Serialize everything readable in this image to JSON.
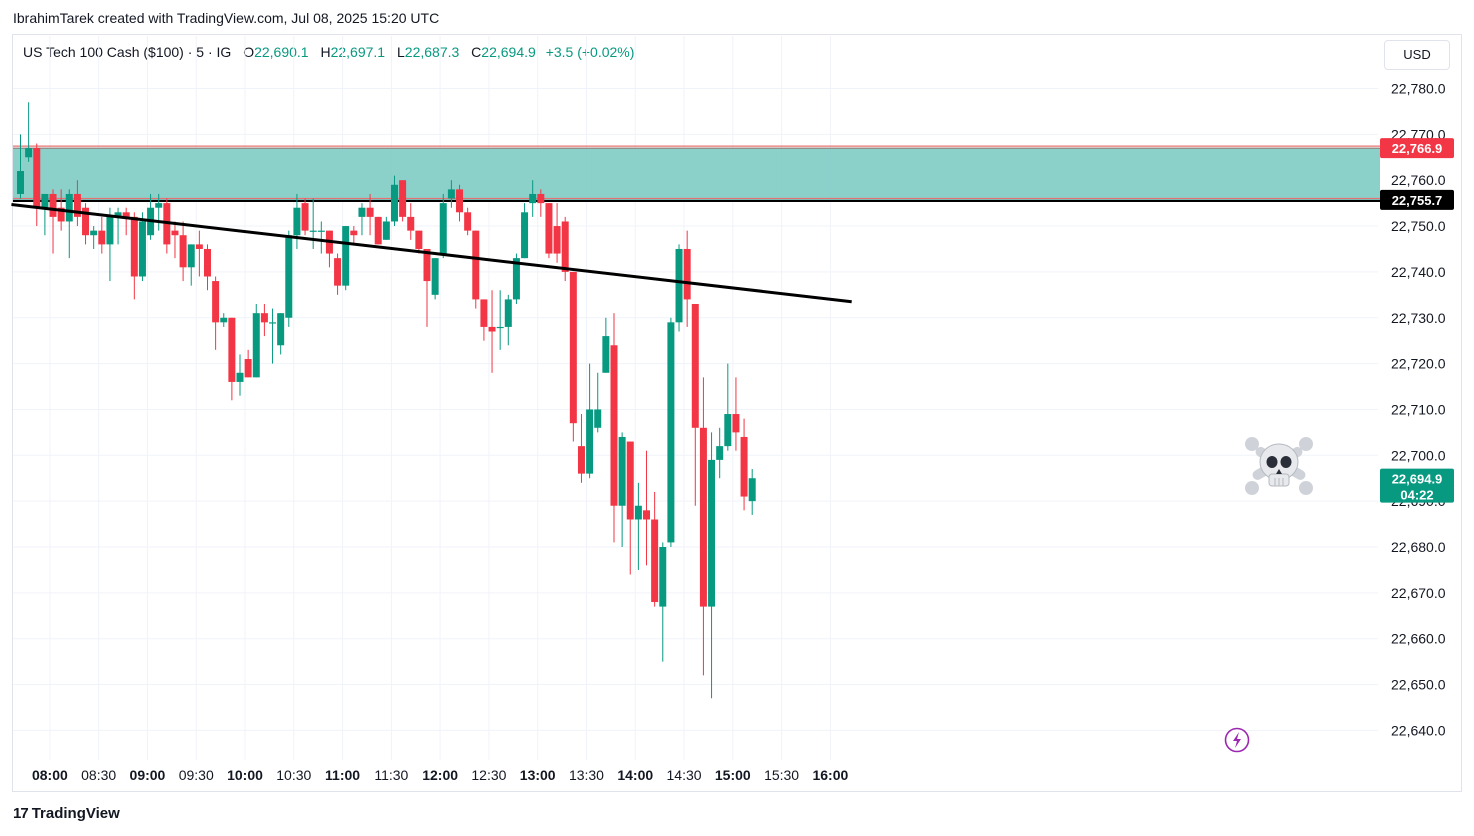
{
  "caption": "IbrahimTarek created with TradingView.com, Jul 08, 2025 15:20 UTC",
  "legend": {
    "symbol": "US Tech 100 Cash ($100) · 5 · IG",
    "o_label": "O",
    "o_value": "22,690.1",
    "h_label": "H",
    "h_value": "22,697.1",
    "l_label": "L",
    "l_value": "22,687.3",
    "c_label": "C",
    "c_value": "22,694.9",
    "change": "+3.5 (+0.02%)"
  },
  "currency": "USD",
  "footer": {
    "brand": "TradingView",
    "mark": "17"
  },
  "colors": {
    "up": "#089981",
    "down": "#f23645",
    "zone": "#80cbc4",
    "line": "#000000",
    "zone_top_tag": "#f23645",
    "zone_bottom_tag": "#000000"
  },
  "chart_data": {
    "type": "candlestick",
    "title": "US Tech 100 Cash ($100) · 5 · IG",
    "ylim": [
      22635,
      22790
    ],
    "y_ticks": [
      "22,780.0",
      "22,770.0",
      "22,760.0",
      "22,750.0",
      "22,740.0",
      "22,730.0",
      "22,720.0",
      "22,710.0",
      "22,700.0",
      "22,690.0",
      "22,680.0",
      "22,670.0",
      "22,660.0",
      "22,650.0",
      "22,640.0"
    ],
    "y_tick_values": [
      22780,
      22770,
      22760,
      22750,
      22740,
      22730,
      22720,
      22710,
      22700,
      22690,
      22680,
      22670,
      22660,
      22650,
      22640
    ],
    "x_ticks": [
      {
        "label": "08:00",
        "index": 3,
        "major": true
      },
      {
        "label": "08:30",
        "index": 9,
        "major": false
      },
      {
        "label": "09:00",
        "index": 15,
        "major": true
      },
      {
        "label": "09:30",
        "index": 21,
        "major": false
      },
      {
        "label": "10:00",
        "index": 27,
        "major": true
      },
      {
        "label": "10:30",
        "index": 33,
        "major": false
      },
      {
        "label": "11:00",
        "index": 39,
        "major": true
      },
      {
        "label": "11:30",
        "index": 45,
        "major": false
      },
      {
        "label": "12:00",
        "index": 51,
        "major": true
      },
      {
        "label": "12:30",
        "index": 57,
        "major": false
      },
      {
        "label": "13:00",
        "index": 63,
        "major": true
      },
      {
        "label": "13:30",
        "index": 69,
        "major": false
      },
      {
        "label": "14:00",
        "index": 75,
        "major": true
      },
      {
        "label": "14:30",
        "index": 81,
        "major": false
      },
      {
        "label": "15:00",
        "index": 87,
        "major": true
      },
      {
        "label": "15:30",
        "index": 93,
        "major": false
      },
      {
        "label": "16:00",
        "index": 99,
        "major": true
      }
    ],
    "candles": [
      [
        22757,
        22770,
        22756,
        22762
      ],
      [
        22765,
        22777,
        22764,
        22767
      ],
      [
        22767,
        22768,
        22750,
        22754
      ],
      [
        22754,
        22757,
        22748,
        22757
      ],
      [
        22757,
        22758,
        22744,
        22752
      ],
      [
        22754,
        22758,
        22749,
        22751
      ],
      [
        22751,
        22758,
        22743,
        22757
      ],
      [
        22757,
        22760,
        22750,
        22752
      ],
      [
        22754,
        22755,
        22746,
        22748
      ],
      [
        22748,
        22750,
        22745,
        22749
      ],
      [
        22749,
        22752,
        22744,
        22746
      ],
      [
        22746,
        22754,
        22738,
        22752
      ],
      [
        22752,
        22754,
        22746,
        22753
      ],
      [
        22753,
        22754,
        22748,
        22752
      ],
      [
        22752,
        22753,
        22734,
        22739
      ],
      [
        22739,
        22753,
        22738,
        22751
      ],
      [
        22748,
        22757,
        22747,
        22754
      ],
      [
        22754,
        22757,
        22749,
        22755
      ],
      [
        22755,
        22756,
        22744,
        22746
      ],
      [
        22749,
        22751,
        22743,
        22748
      ],
      [
        22748,
        22751,
        22738,
        22741
      ],
      [
        22741,
        22746,
        22737,
        22746
      ],
      [
        22746,
        22749,
        22739,
        22745
      ],
      [
        22745,
        22746,
        22736,
        22739
      ],
      [
        22738,
        22739,
        22723,
        22729
      ],
      [
        22729,
        22731,
        22728,
        22730
      ],
      [
        22730,
        22730,
        22712,
        22716
      ],
      [
        22716,
        22722,
        22713,
        22718
      ],
      [
        22721,
        22723,
        22717,
        22717
      ],
      [
        22717,
        22733,
        22717,
        22731
      ],
      [
        22731,
        22733,
        22726,
        22729
      ],
      [
        22729,
        22732,
        22720,
        22729
      ],
      [
        22724,
        22731,
        22722,
        22731
      ],
      [
        22730,
        22749,
        22728,
        22748
      ],
      [
        22748,
        22757,
        22745,
        22754
      ],
      [
        22755,
        22756,
        22748,
        22749
      ],
      [
        22749,
        22756,
        22745,
        22749
      ],
      [
        22749,
        22751,
        22744,
        22749
      ],
      [
        22749,
        22749,
        22741,
        22744
      ],
      [
        22743,
        22744,
        22735,
        22737
      ],
      [
        22737,
        22750,
        22736,
        22750
      ],
      [
        22749,
        22750,
        22746,
        22748
      ],
      [
        22752,
        22755,
        22748,
        22754
      ],
      [
        22754,
        22757,
        22748,
        22752
      ],
      [
        22752,
        22752,
        22746,
        22746
      ],
      [
        22747,
        22752,
        22747,
        22751
      ],
      [
        22751,
        22761,
        22750,
        22759
      ],
      [
        22760,
        22760,
        22751,
        22752
      ],
      [
        22752,
        22755,
        22747,
        22749
      ],
      [
        22749,
        22749,
        22744,
        22745
      ],
      [
        22745,
        22745,
        22728,
        22738
      ],
      [
        22735,
        22743,
        22734,
        22743
      ],
      [
        22744,
        22757,
        22743,
        22755
      ],
      [
        22756,
        22760,
        22754,
        22758
      ],
      [
        22758,
        22759,
        22751,
        22753
      ],
      [
        22753,
        22754,
        22748,
        22749
      ],
      [
        22749,
        22749,
        22732,
        22734
      ],
      [
        22734,
        22734,
        22725,
        22728
      ],
      [
        22728,
        22736,
        22718,
        22727
      ],
      [
        22728,
        22736,
        22723,
        22728
      ],
      [
        22728,
        22735,
        22724,
        22734
      ],
      [
        22734,
        22744,
        22733,
        22743
      ],
      [
        22743,
        22755,
        22743,
        22753
      ],
      [
        22755,
        22760,
        22752,
        22757
      ],
      [
        22757,
        22758,
        22752,
        22755
      ],
      [
        22755,
        22755,
        22743,
        22744
      ],
      [
        22750,
        22755,
        22742,
        22744
      ],
      [
        22751,
        22752,
        22738,
        22740
      ],
      [
        22740,
        22740,
        22703,
        22707
      ],
      [
        22702,
        22709,
        22694,
        22696
      ],
      [
        22696,
        22720,
        22695,
        22710
      ],
      [
        22706,
        22718,
        22705,
        22710
      ],
      [
        22718,
        22730,
        22718,
        22726
      ],
      [
        22724,
        22731,
        22681,
        22689
      ],
      [
        22689,
        22705,
        22680,
        22704
      ],
      [
        22703,
        22703,
        22674,
        22686
      ],
      [
        22686,
        22694,
        22675,
        22689
      ],
      [
        22688,
        22701,
        22676,
        22686
      ],
      [
        22686,
        22692,
        22667,
        22668
      ],
      [
        22667,
        22681,
        22655,
        22680
      ],
      [
        22681,
        22730,
        22680,
        22729
      ],
      [
        22729,
        22746,
        22727,
        22745
      ],
      [
        22745,
        22749,
        22728,
        22734
      ],
      [
        22733,
        22733,
        22689,
        22706
      ],
      [
        22706,
        22717,
        22652,
        22667
      ],
      [
        22667,
        22705,
        22647,
        22699
      ],
      [
        22699,
        22706,
        22695,
        22702
      ],
      [
        22702,
        22720,
        22701,
        22709
      ],
      [
        22709,
        22717,
        22701,
        22705
      ],
      [
        22704,
        22708,
        22688,
        22691
      ],
      [
        22690,
        22697,
        22687,
        22695
      ]
    ],
    "zone": {
      "top": 22767,
      "bottom": 22755.7,
      "top_label": "22,766.9",
      "bottom_label": "22,755.7"
    },
    "trendline": {
      "start_index": -0.5,
      "start_price": 22754.8,
      "end_index": 101.5,
      "end_price": 22733.5
    },
    "last_price": {
      "value": 22694.9,
      "label": "22,694.9",
      "countdown": "04:22"
    },
    "annotation": "skull-and-crossbones"
  }
}
